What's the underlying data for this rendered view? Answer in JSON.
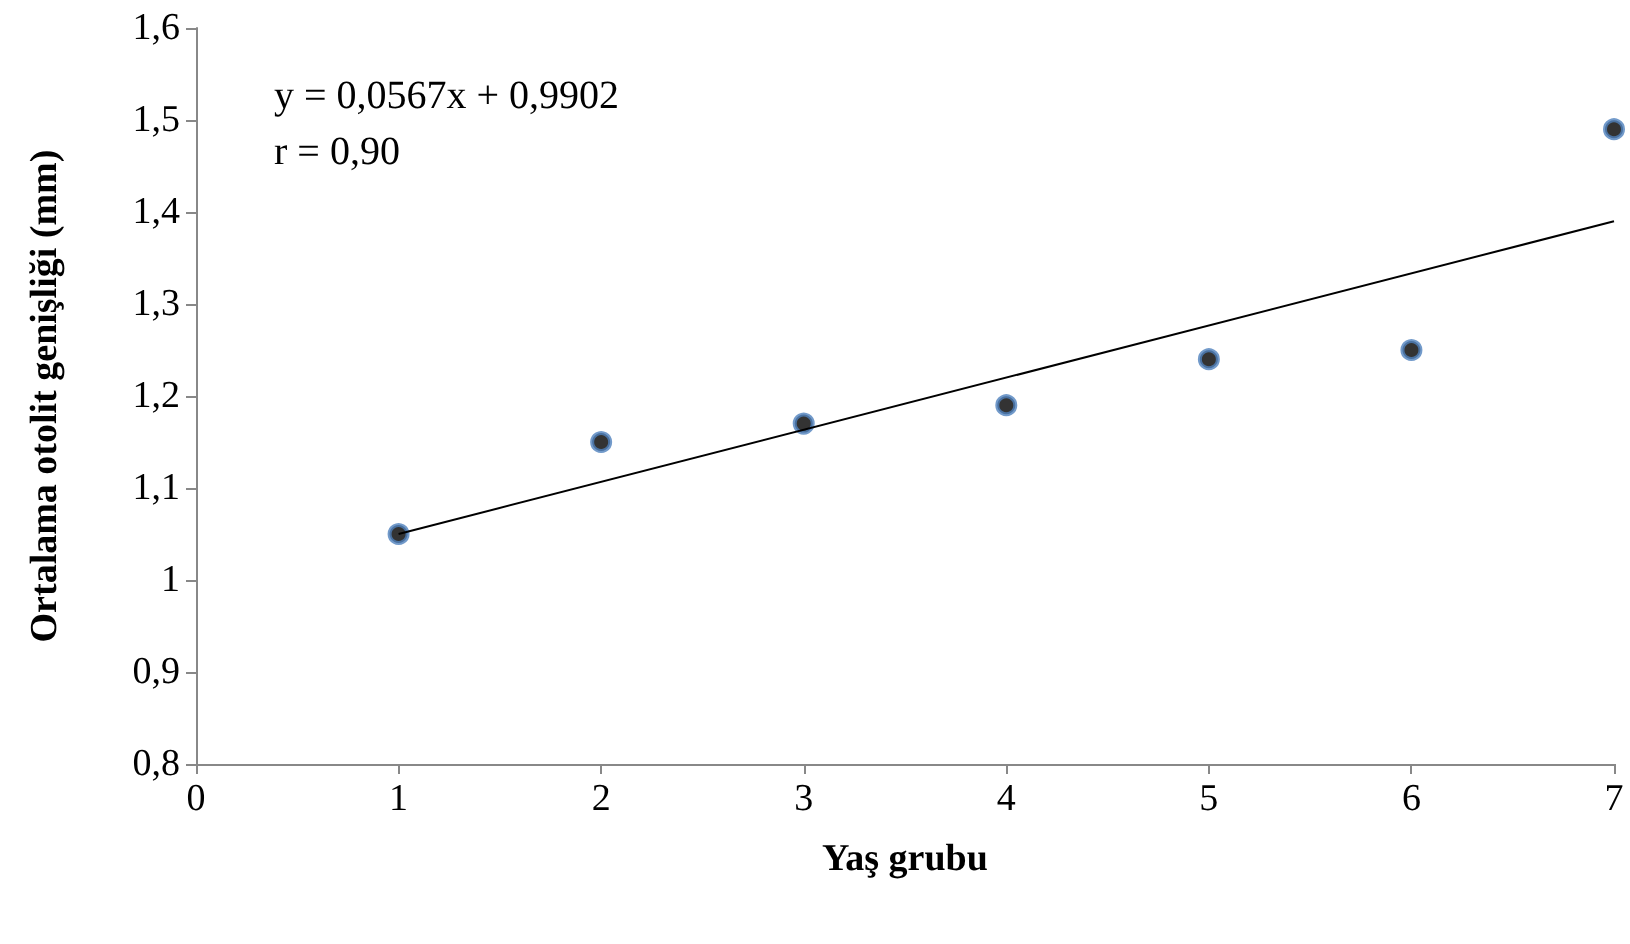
{
  "chart_data": {
    "type": "scatter",
    "xlabel": "Yaş grubu",
    "ylabel": "Ortalama otolit genişliği (mm)",
    "annotations": [
      "y = 0,0567x + 0,9902",
      "r = 0,90"
    ],
    "series": [
      {
        "color": "#000000",
        "marker": "circle",
        "x": [
          1,
          2,
          3,
          4,
          5,
          6,
          7
        ],
        "values": [
          1.05,
          1.15,
          1.17,
          1.19,
          1.24,
          1.25,
          1.49
        ]
      },
      {
        "type": "line",
        "color": "#000000",
        "marker": "none",
        "line_style": "solid",
        "x": [
          1,
          7
        ],
        "values": [
          1.05,
          1.39
        ]
      }
    ],
    "xlim": [
      0,
      7
    ],
    "xticks": [
      0,
      1,
      2,
      3,
      4,
      5,
      6,
      7
    ],
    "ylim": [
      0.8,
      1.6
    ],
    "yticks": [
      {
        "value": 0.8,
        "label": "0,8"
      },
      {
        "value": 0.9,
        "label": "0,9"
      },
      1,
      {
        "value": 1.1,
        "label": "1,1"
      },
      {
        "value": 1.2,
        "label": "1,2"
      },
      {
        "value": 1.3,
        "label": "1,3"
      },
      {
        "value": 1.4,
        "label": "1,4"
      },
      {
        "value": 1.5,
        "label": "1,5"
      },
      {
        "value": 1.6,
        "label": "1,6"
      }
    ],
    "grid": false
  }
}
